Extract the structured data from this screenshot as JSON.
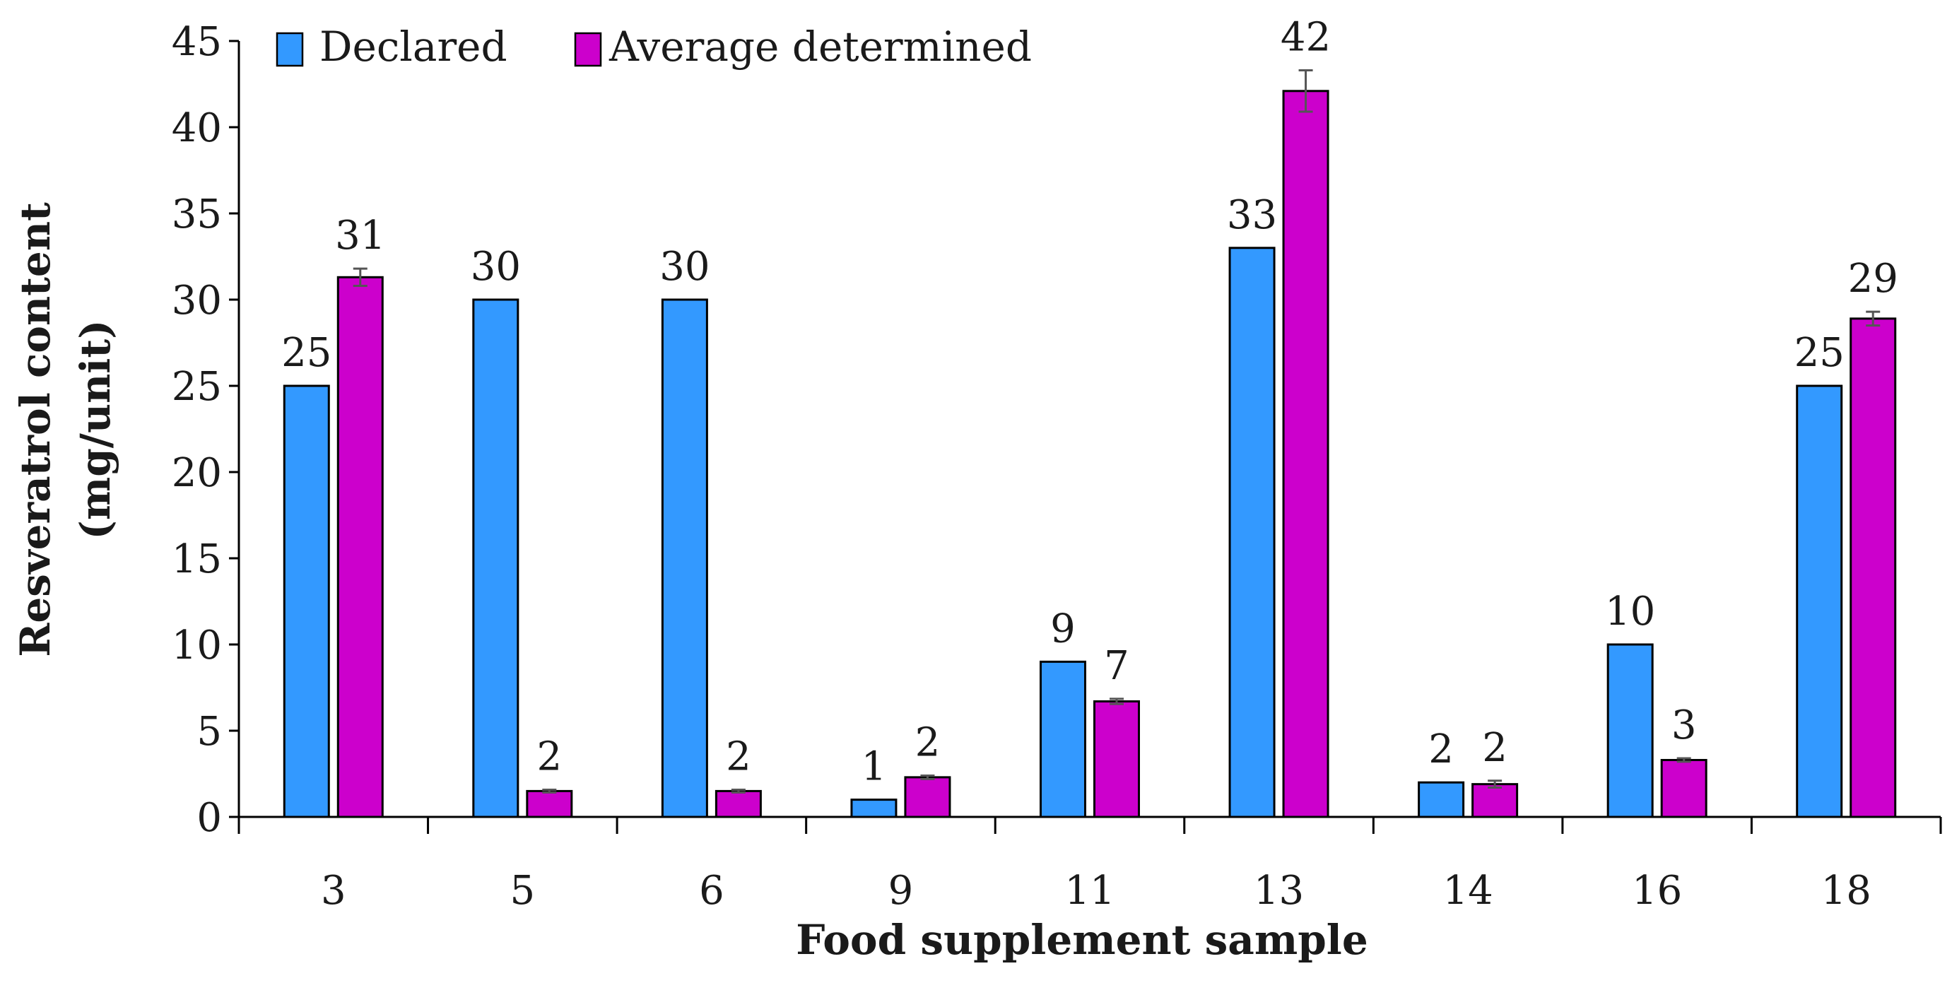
{
  "chart_data": {
    "type": "bar",
    "title": "",
    "xlabel": "Food supplement sample",
    "ylabel": "Resveratrol content",
    "ylabel_line2": "(mg/unit)",
    "ylim": [
      0,
      45
    ],
    "yticks": [
      0,
      5,
      10,
      15,
      20,
      25,
      30,
      35,
      40,
      45
    ],
    "grid": false,
    "legend_position": "top-left",
    "categories": [
      "3",
      "5",
      "6",
      "9",
      "11",
      "13",
      "14",
      "16",
      "18"
    ],
    "series": [
      {
        "name": "Declared",
        "color": "#3399ff",
        "values": [
          25,
          30,
          30,
          1,
          9,
          33,
          2,
          10,
          25
        ],
        "labels": [
          "25",
          "30",
          "30",
          "1",
          "9",
          "33",
          "2",
          "10",
          "25"
        ]
      },
      {
        "name": "Average determined",
        "color": "#cc00cc",
        "values": [
          31.3,
          1.5,
          1.5,
          2.3,
          6.7,
          42.1,
          1.9,
          3.3,
          28.9
        ],
        "errors": [
          0.5,
          0.08,
          0.08,
          0.1,
          0.15,
          1.2,
          0.2,
          0.1,
          0.4
        ],
        "labels": [
          "31",
          "2",
          "2",
          "2",
          "7",
          "42",
          "2",
          "3",
          "29"
        ]
      }
    ]
  }
}
